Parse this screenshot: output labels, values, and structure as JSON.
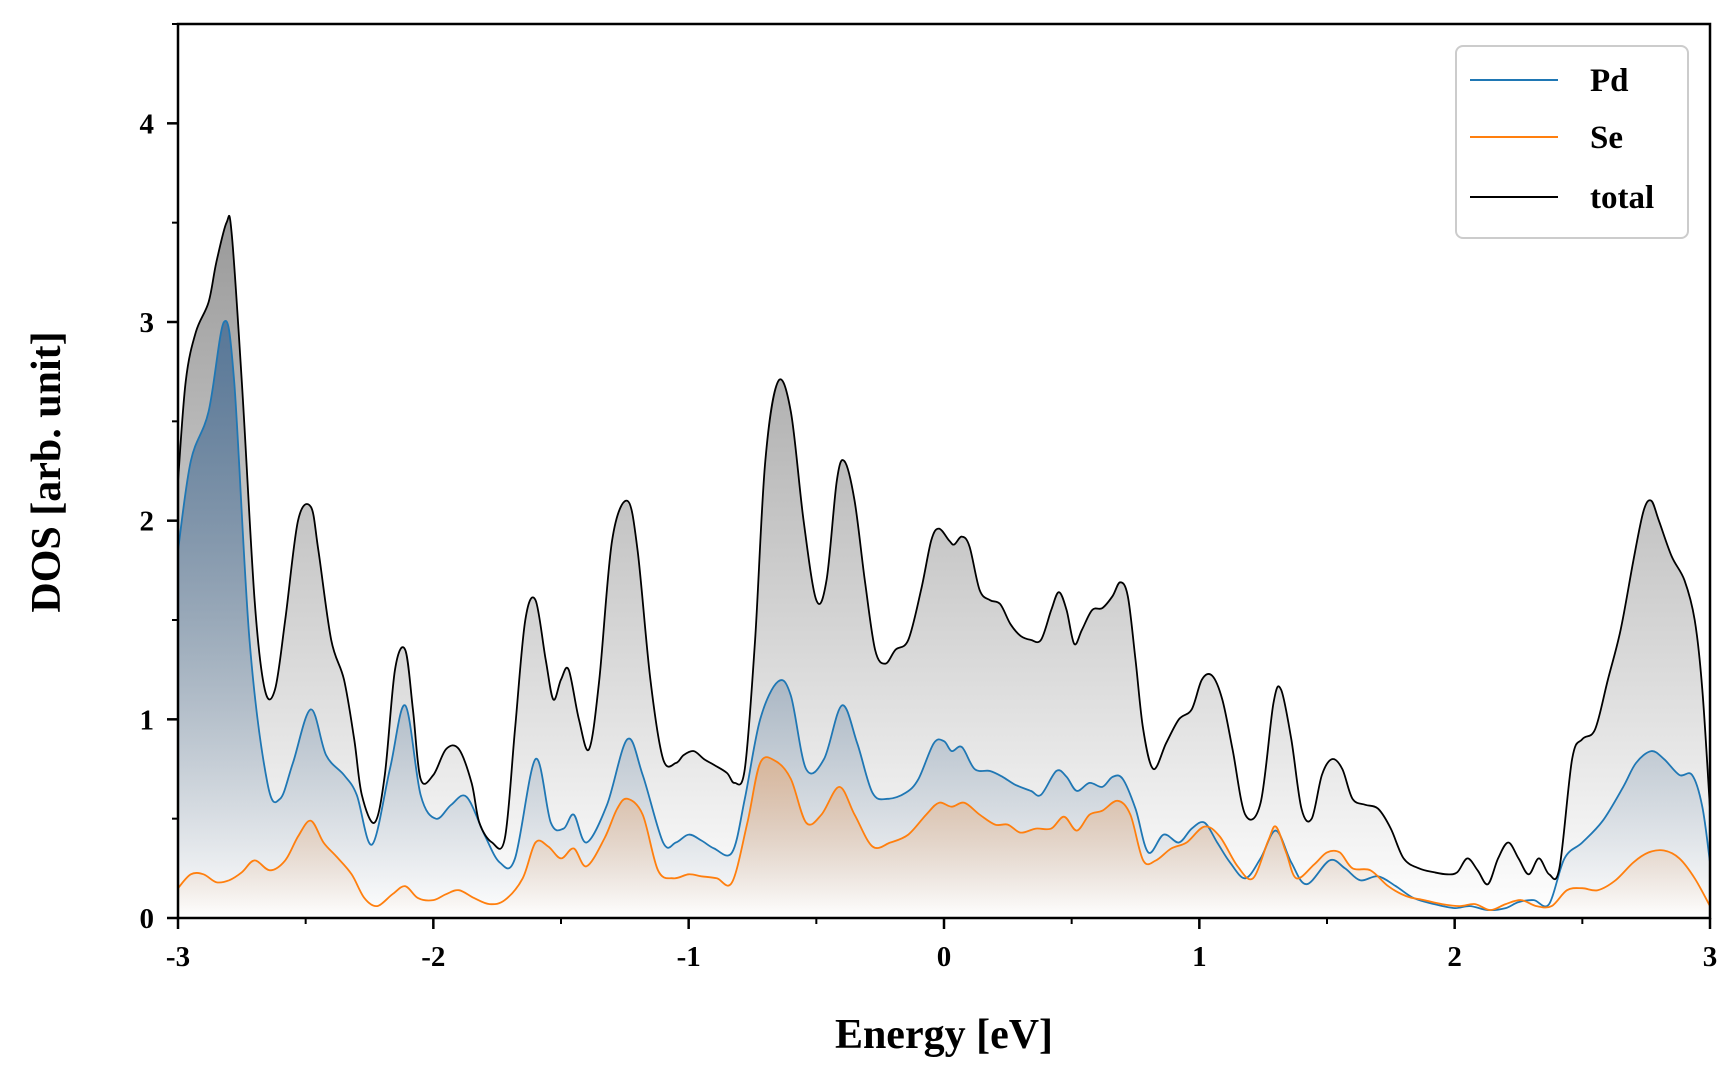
{
  "chart_data": {
    "type": "line",
    "title": "",
    "xlabel": "Energy [eV]",
    "ylabel": "DOS [arb. unit]",
    "xlim": [
      -3,
      3
    ],
    "ylim": [
      0,
      4.5
    ],
    "xticks": [
      -3,
      -2,
      -1,
      0,
      1,
      2,
      3
    ],
    "xtick_labels": [
      "-3",
      "-2",
      "-1",
      "0",
      "1",
      "2",
      "3"
    ],
    "yticks": [
      0,
      1,
      2,
      3,
      4
    ],
    "ytick_labels": [
      "0",
      "1",
      "2",
      "3",
      "4"
    ],
    "legend_position": "top-right",
    "grid": false,
    "series": [
      {
        "name": "Pd",
        "color": "#1f77b4",
        "fill_color": "#4a6f95",
        "x": [
          -3.0,
          -2.95,
          -2.88,
          -2.82,
          -2.78,
          -2.72,
          -2.65,
          -2.6,
          -2.55,
          -2.48,
          -2.42,
          -2.35,
          -2.3,
          -2.24,
          -2.17,
          -2.11,
          -2.05,
          -1.99,
          -1.93,
          -1.87,
          -1.8,
          -1.74,
          -1.68,
          -1.6,
          -1.54,
          -1.49,
          -1.45,
          -1.4,
          -1.32,
          -1.24,
          -1.18,
          -1.1,
          -1.05,
          -1.0,
          -0.95,
          -0.9,
          -0.83,
          -0.78,
          -0.72,
          -0.65,
          -0.6,
          -0.54,
          -0.47,
          -0.4,
          -0.34,
          -0.28,
          -0.22,
          -0.15,
          -0.1,
          -0.04,
          0.0,
          0.03,
          0.07,
          0.12,
          0.18,
          0.23,
          0.28,
          0.34,
          0.38,
          0.44,
          0.48,
          0.52,
          0.57,
          0.62,
          0.66,
          0.7,
          0.75,
          0.8,
          0.86,
          0.92,
          0.97,
          1.02,
          1.07,
          1.12,
          1.18,
          1.24,
          1.3,
          1.36,
          1.42,
          1.51,
          1.57,
          1.63,
          1.7,
          1.77,
          1.84,
          1.92,
          2.0,
          2.06,
          2.13,
          2.2,
          2.25,
          2.31,
          2.37,
          2.43,
          2.5,
          2.58,
          2.66,
          2.71,
          2.77,
          2.82,
          2.88,
          2.93,
          2.97,
          3.0
        ],
        "values": [
          1.85,
          2.3,
          2.55,
          3.0,
          2.7,
          1.4,
          0.68,
          0.6,
          0.78,
          1.05,
          0.82,
          0.72,
          0.62,
          0.37,
          0.75,
          1.07,
          0.62,
          0.5,
          0.57,
          0.61,
          0.42,
          0.28,
          0.3,
          0.8,
          0.48,
          0.45,
          0.52,
          0.38,
          0.57,
          0.9,
          0.72,
          0.38,
          0.38,
          0.42,
          0.39,
          0.35,
          0.33,
          0.6,
          1.0,
          1.19,
          1.12,
          0.75,
          0.8,
          1.07,
          0.88,
          0.63,
          0.6,
          0.63,
          0.7,
          0.88,
          0.89,
          0.84,
          0.86,
          0.75,
          0.74,
          0.71,
          0.67,
          0.64,
          0.62,
          0.74,
          0.71,
          0.64,
          0.68,
          0.66,
          0.71,
          0.7,
          0.55,
          0.33,
          0.42,
          0.38,
          0.45,
          0.48,
          0.38,
          0.28,
          0.2,
          0.3,
          0.44,
          0.28,
          0.17,
          0.29,
          0.25,
          0.19,
          0.21,
          0.16,
          0.1,
          0.07,
          0.05,
          0.06,
          0.04,
          0.05,
          0.08,
          0.09,
          0.07,
          0.3,
          0.38,
          0.49,
          0.66,
          0.78,
          0.84,
          0.8,
          0.72,
          0.72,
          0.56,
          0.28
        ]
      },
      {
        "name": "Se",
        "color": "#ff7f0e",
        "fill_color": "#e8a46c",
        "x": [
          -3.0,
          -2.95,
          -2.9,
          -2.85,
          -2.8,
          -2.75,
          -2.7,
          -2.64,
          -2.58,
          -2.53,
          -2.48,
          -2.43,
          -2.38,
          -2.32,
          -2.27,
          -2.22,
          -2.16,
          -2.11,
          -2.06,
          -2.0,
          -1.95,
          -1.9,
          -1.84,
          -1.78,
          -1.72,
          -1.65,
          -1.6,
          -1.55,
          -1.5,
          -1.45,
          -1.4,
          -1.33,
          -1.28,
          -1.24,
          -1.18,
          -1.12,
          -1.06,
          -1.0,
          -0.95,
          -0.89,
          -0.83,
          -0.77,
          -0.72,
          -0.66,
          -0.6,
          -0.54,
          -0.48,
          -0.41,
          -0.35,
          -0.28,
          -0.21,
          -0.14,
          -0.07,
          -0.02,
          0.03,
          0.08,
          0.14,
          0.2,
          0.25,
          0.3,
          0.36,
          0.42,
          0.47,
          0.52,
          0.57,
          0.62,
          0.68,
          0.73,
          0.78,
          0.83,
          0.89,
          0.95,
          1.02,
          1.08,
          1.15,
          1.21,
          1.27,
          1.3,
          1.34,
          1.38,
          1.45,
          1.5,
          1.55,
          1.6,
          1.67,
          1.74,
          1.81,
          1.88,
          1.95,
          2.02,
          2.08,
          2.14,
          2.2,
          2.26,
          2.32,
          2.38,
          2.44,
          2.5,
          2.56,
          2.63,
          2.7,
          2.76,
          2.82,
          2.88,
          2.94,
          3.0
        ],
        "values": [
          0.15,
          0.22,
          0.22,
          0.18,
          0.19,
          0.23,
          0.29,
          0.24,
          0.29,
          0.41,
          0.49,
          0.38,
          0.31,
          0.22,
          0.1,
          0.06,
          0.12,
          0.16,
          0.1,
          0.09,
          0.12,
          0.14,
          0.1,
          0.07,
          0.09,
          0.2,
          0.38,
          0.36,
          0.3,
          0.35,
          0.26,
          0.4,
          0.55,
          0.6,
          0.52,
          0.24,
          0.2,
          0.22,
          0.21,
          0.2,
          0.18,
          0.48,
          0.78,
          0.79,
          0.7,
          0.48,
          0.52,
          0.66,
          0.52,
          0.36,
          0.38,
          0.42,
          0.52,
          0.58,
          0.56,
          0.58,
          0.52,
          0.47,
          0.47,
          0.43,
          0.45,
          0.45,
          0.51,
          0.44,
          0.52,
          0.54,
          0.59,
          0.52,
          0.29,
          0.29,
          0.35,
          0.38,
          0.46,
          0.41,
          0.26,
          0.2,
          0.39,
          0.46,
          0.33,
          0.2,
          0.27,
          0.33,
          0.33,
          0.25,
          0.24,
          0.16,
          0.11,
          0.09,
          0.07,
          0.06,
          0.07,
          0.04,
          0.07,
          0.09,
          0.06,
          0.06,
          0.14,
          0.15,
          0.14,
          0.19,
          0.28,
          0.33,
          0.34,
          0.3,
          0.2,
          0.06
        ]
      },
      {
        "name": "total",
        "color": "#000000",
        "fill_color": "#777777",
        "x": [
          -3.0,
          -2.97,
          -2.93,
          -2.88,
          -2.85,
          -2.81,
          -2.79,
          -2.75,
          -2.7,
          -2.66,
          -2.62,
          -2.58,
          -2.53,
          -2.48,
          -2.45,
          -2.4,
          -2.35,
          -2.31,
          -2.28,
          -2.23,
          -2.19,
          -2.15,
          -2.11,
          -2.08,
          -2.05,
          -2.0,
          -1.95,
          -1.9,
          -1.85,
          -1.82,
          -1.77,
          -1.72,
          -1.68,
          -1.64,
          -1.6,
          -1.56,
          -1.53,
          -1.5,
          -1.47,
          -1.43,
          -1.39,
          -1.35,
          -1.3,
          -1.24,
          -1.2,
          -1.15,
          -1.1,
          -1.05,
          -1.02,
          -0.98,
          -0.94,
          -0.9,
          -0.85,
          -0.82,
          -0.78,
          -0.74,
          -0.7,
          -0.65,
          -0.6,
          -0.55,
          -0.5,
          -0.46,
          -0.42,
          -0.39,
          -0.35,
          -0.31,
          -0.27,
          -0.23,
          -0.19,
          -0.14,
          -0.09,
          -0.05,
          -0.02,
          0.02,
          0.04,
          0.07,
          0.1,
          0.14,
          0.18,
          0.22,
          0.26,
          0.3,
          0.34,
          0.38,
          0.42,
          0.45,
          0.48,
          0.51,
          0.54,
          0.58,
          0.62,
          0.66,
          0.69,
          0.72,
          0.75,
          0.78,
          0.82,
          0.87,
          0.92,
          0.97,
          1.01,
          1.05,
          1.09,
          1.13,
          1.18,
          1.24,
          1.29,
          1.32,
          1.36,
          1.4,
          1.44,
          1.48,
          1.52,
          1.56,
          1.6,
          1.65,
          1.7,
          1.75,
          1.8,
          1.86,
          1.92,
          1.97,
          2.01,
          2.05,
          2.09,
          2.13,
          2.17,
          2.21,
          2.25,
          2.29,
          2.33,
          2.37,
          2.41,
          2.46,
          2.5,
          2.55,
          2.6,
          2.65,
          2.7,
          2.74,
          2.77,
          2.8,
          2.85,
          2.9,
          2.94,
          2.97,
          3.0
        ],
        "values": [
          2.2,
          2.7,
          2.95,
          3.1,
          3.3,
          3.5,
          3.45,
          2.7,
          1.6,
          1.15,
          1.15,
          1.5,
          2.0,
          2.07,
          1.85,
          1.4,
          1.2,
          0.9,
          0.62,
          0.48,
          0.72,
          1.25,
          1.35,
          1.05,
          0.7,
          0.72,
          0.85,
          0.85,
          0.68,
          0.48,
          0.38,
          0.4,
          0.95,
          1.5,
          1.6,
          1.3,
          1.1,
          1.2,
          1.25,
          1.0,
          0.85,
          1.2,
          1.9,
          2.1,
          1.85,
          1.2,
          0.8,
          0.78,
          0.82,
          0.84,
          0.8,
          0.77,
          0.73,
          0.68,
          0.75,
          1.4,
          2.3,
          2.7,
          2.55,
          2.0,
          1.6,
          1.7,
          2.2,
          2.3,
          2.1,
          1.7,
          1.35,
          1.28,
          1.35,
          1.4,
          1.65,
          1.9,
          1.96,
          1.9,
          1.88,
          1.92,
          1.87,
          1.65,
          1.6,
          1.58,
          1.48,
          1.42,
          1.4,
          1.4,
          1.55,
          1.64,
          1.55,
          1.38,
          1.45,
          1.55,
          1.56,
          1.62,
          1.69,
          1.62,
          1.3,
          0.95,
          0.75,
          0.88,
          1.0,
          1.05,
          1.2,
          1.22,
          1.1,
          0.85,
          0.52,
          0.58,
          1.08,
          1.15,
          0.9,
          0.55,
          0.5,
          0.72,
          0.8,
          0.75,
          0.6,
          0.57,
          0.55,
          0.45,
          0.3,
          0.25,
          0.23,
          0.22,
          0.23,
          0.3,
          0.24,
          0.17,
          0.3,
          0.38,
          0.3,
          0.22,
          0.3,
          0.22,
          0.25,
          0.8,
          0.9,
          0.95,
          1.2,
          1.45,
          1.8,
          2.05,
          2.1,
          2.0,
          1.82,
          1.7,
          1.5,
          1.15,
          0.55
        ]
      }
    ]
  }
}
